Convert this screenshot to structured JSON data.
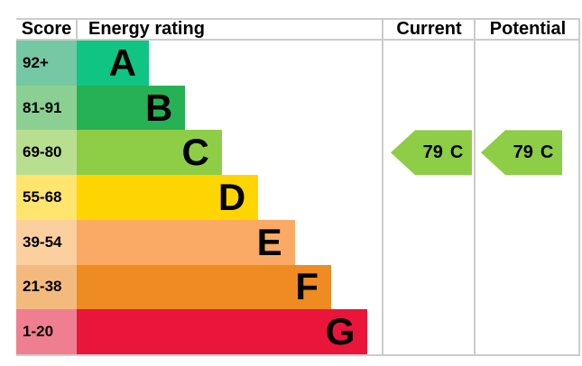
{
  "header": {
    "score": "Score",
    "energy_rating": "Energy rating",
    "current": "Current",
    "potential": "Potential"
  },
  "chart_data": {
    "type": "bar",
    "title": "Energy rating",
    "orientation": "horizontal-stepped-epc",
    "categories": [
      "A",
      "B",
      "C",
      "D",
      "E",
      "F",
      "G"
    ],
    "score_ranges": [
      "92+",
      "81-91",
      "69-80",
      "55-68",
      "39-54",
      "21-38",
      "1-20"
    ],
    "band_colors": [
      "#10c484",
      "#27b155",
      "#8dce46",
      "#ffd500",
      "#fbaa65",
      "#ee8b23",
      "#e9153b"
    ],
    "score_cell_colors": [
      "#74c8a3",
      "#8bd092",
      "#b8de90",
      "#ffe46e",
      "#fccf9f",
      "#f3ba7e",
      "#ef7e91"
    ],
    "current": {
      "score": "79",
      "grade": "C",
      "band_index": 2,
      "color": "#8dce46"
    },
    "potential": {
      "score": "79",
      "grade": "C",
      "band_index": 2,
      "color": "#8dce46"
    }
  },
  "colors": {
    "background": "#ffffff",
    "border": "#cccccc",
    "text": "#000000"
  }
}
